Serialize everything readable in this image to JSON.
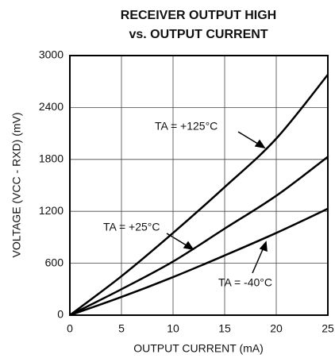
{
  "chart_data": {
    "type": "line",
    "title_lines": [
      "RECEIVER OUTPUT HIGH",
      "vs. OUTPUT CURRENT"
    ],
    "x_label": "OUTPUT CURRENT (mA)",
    "y_label": "VOLTAGE (VCC - RXD) (mV)",
    "x": [
      0,
      5,
      10,
      15,
      20,
      25
    ],
    "series": [
      {
        "name": "TA = +125°C",
        "color": "#000000",
        "values": [
          0,
          450,
          950,
          1480,
          2040,
          2780
        ]
      },
      {
        "name": "TA = +25°C",
        "color": "#000000",
        "values": [
          0,
          300,
          620,
          1000,
          1380,
          1830
        ]
      },
      {
        "name": "TA = -40°C",
        "color": "#000000",
        "values": [
          0,
          210,
          440,
          690,
          950,
          1230
        ]
      }
    ],
    "xlim": [
      0,
      25
    ],
    "xticks": [
      0,
      5,
      10,
      15,
      20,
      25
    ],
    "ylim": [
      0,
      3000
    ],
    "yticks": [
      0,
      600,
      1200,
      1800,
      2400,
      3000
    ],
    "grid": true
  }
}
